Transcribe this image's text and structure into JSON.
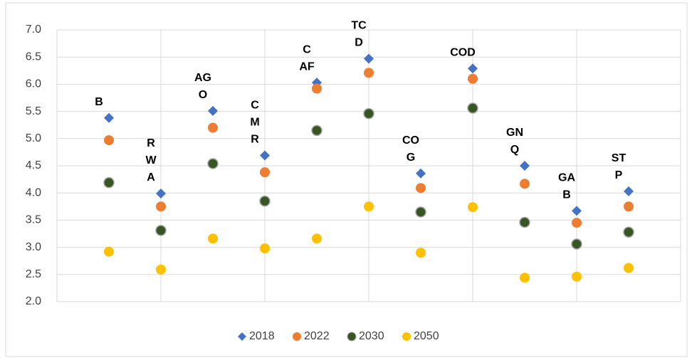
{
  "chart_data": {
    "type": "scatter",
    "x": [
      1,
      2,
      3,
      4,
      5,
      6,
      7,
      8,
      9,
      10,
      11
    ],
    "point_labels": [
      [
        "B"
      ],
      [
        "R",
        "W",
        "A"
      ],
      [
        "AG",
        "O"
      ],
      [
        "C",
        "M",
        "R"
      ],
      [
        "C",
        "AF"
      ],
      [
        "TC",
        "D"
      ],
      [
        "CO",
        "G"
      ],
      [
        "COD"
      ],
      [
        "GN",
        "Q"
      ],
      [
        "GA",
        "B"
      ],
      [
        "ST",
        "P"
      ]
    ],
    "series": [
      {
        "name": "2018",
        "color": "#4472c4",
        "marker": "diamond",
        "values": [
          5.38,
          3.99,
          5.51,
          4.69,
          6.03,
          6.47,
          4.36,
          6.29,
          4.5,
          3.67,
          4.03
        ]
      },
      {
        "name": "2022",
        "color": "#ed7d31",
        "marker": "circle",
        "values": [
          4.97,
          3.75,
          5.2,
          4.38,
          5.92,
          6.21,
          4.09,
          6.1,
          4.17,
          3.45,
          3.75
        ]
      },
      {
        "name": "2030",
        "color": "#375623",
        "marker": "circle",
        "values": [
          4.19,
          3.31,
          4.54,
          3.85,
          5.15,
          5.46,
          3.65,
          5.56,
          3.46,
          3.06,
          3.28
        ]
      },
      {
        "name": "2050",
        "color": "#ffc000",
        "marker": "circle",
        "values": [
          2.92,
          2.59,
          3.16,
          2.98,
          3.16,
          3.75,
          2.9,
          3.74,
          2.44,
          2.46,
          2.62
        ]
      }
    ],
    "xlim": [
      0,
      12
    ],
    "xticks": [
      0,
      2,
      4,
      6,
      8,
      10,
      12
    ],
    "ylim": [
      2,
      7
    ],
    "yticks": [
      {
        "value": 2,
        "label": "2.0"
      },
      {
        "value": 2.5,
        "label": "2.5"
      },
      {
        "value": 3,
        "label": "3.0"
      },
      {
        "value": 3.5,
        "label": "3.5"
      },
      {
        "value": 4,
        "label": "4.0"
      },
      {
        "value": 4.5,
        "label": "4.5"
      },
      {
        "value": 5,
        "label": "5.0"
      },
      {
        "value": 5.5,
        "label": "5.5"
      },
      {
        "value": 6,
        "label": "6.0"
      },
      {
        "value": 6.5,
        "label": "6.5"
      },
      {
        "value": 7,
        "label": "7.0"
      }
    ],
    "grid": true,
    "legend": "bottom"
  }
}
